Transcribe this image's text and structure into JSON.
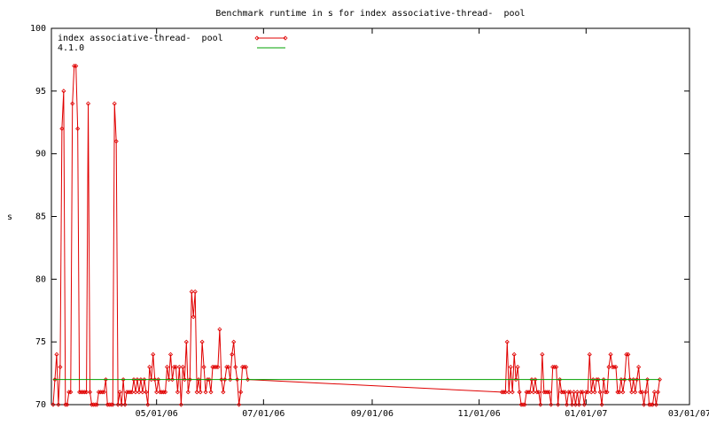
{
  "chart_data": {
    "type": "line",
    "title": "Benchmark runtime in s for index associative-thread-  pool",
    "y_label": "s",
    "xlim": [
      "2006-03-02",
      "2007-03-01"
    ],
    "xticks": [
      {
        "value": "2006-05-01",
        "label": "05/01/06"
      },
      {
        "value": "2006-07-01",
        "label": "07/01/06"
      },
      {
        "value": "2006-09-01",
        "label": "09/01/06"
      },
      {
        "value": "2006-11-01",
        "label": "11/01/06"
      },
      {
        "value": "2007-01-01",
        "label": "01/01/07"
      },
      {
        "value": "2007-03-01",
        "label": "03/01/07"
      }
    ],
    "ylim": [
      70,
      100
    ],
    "yticks": [
      70,
      75,
      80,
      85,
      90,
      95,
      100
    ],
    "legend": "top-left",
    "series": [
      {
        "name": "index associative-thread-  pool",
        "color": "#e00000",
        "markers": true,
        "x": [
          "2006-03-03",
          "2006-03-04",
          "2006-03-05",
          "2006-03-06",
          "2006-03-07",
          "2006-03-08",
          "2006-03-09",
          "2006-03-10",
          "2006-03-11",
          "2006-03-12",
          "2006-03-13",
          "2006-03-14",
          "2006-03-15",
          "2006-03-16",
          "2006-03-17",
          "2006-03-18",
          "2006-03-19",
          "2006-03-20",
          "2006-03-21",
          "2006-03-22",
          "2006-03-23",
          "2006-03-24",
          "2006-03-25",
          "2006-03-26",
          "2006-03-27",
          "2006-03-28",
          "2006-03-29",
          "2006-03-30",
          "2006-03-31",
          "2006-04-01",
          "2006-04-02",
          "2006-04-03",
          "2006-04-04",
          "2006-04-05",
          "2006-04-06",
          "2006-04-07",
          "2006-04-08",
          "2006-04-09",
          "2006-04-10",
          "2006-04-11",
          "2006-04-12",
          "2006-04-13",
          "2006-04-14",
          "2006-04-15",
          "2006-04-16",
          "2006-04-17",
          "2006-04-18",
          "2006-04-19",
          "2006-04-20",
          "2006-04-21",
          "2006-04-22",
          "2006-04-23",
          "2006-04-24",
          "2006-04-25",
          "2006-04-26",
          "2006-04-27",
          "2006-04-28",
          "2006-04-29",
          "2006-04-30",
          "2006-05-01",
          "2006-05-02",
          "2006-05-03",
          "2006-05-04",
          "2006-05-05",
          "2006-05-06",
          "2006-05-07",
          "2006-05-08",
          "2006-05-09",
          "2006-05-10",
          "2006-05-11",
          "2006-05-12",
          "2006-05-13",
          "2006-05-14",
          "2006-05-15",
          "2006-05-16",
          "2006-05-17",
          "2006-05-18",
          "2006-05-19",
          "2006-05-20",
          "2006-05-21",
          "2006-05-22",
          "2006-05-23",
          "2006-05-24",
          "2006-05-25",
          "2006-05-26",
          "2006-05-27",
          "2006-05-28",
          "2006-05-29",
          "2006-05-30",
          "2006-05-31",
          "2006-06-01",
          "2006-06-02",
          "2006-06-03",
          "2006-06-04",
          "2006-06-05",
          "2006-06-06",
          "2006-06-07",
          "2006-06-08",
          "2006-06-09",
          "2006-06-10",
          "2006-06-11",
          "2006-06-12",
          "2006-06-13",
          "2006-06-14",
          "2006-06-15",
          "2006-06-16",
          "2006-06-17",
          "2006-06-18",
          "2006-06-19",
          "2006-06-20",
          "2006-06-21",
          "2006-06-22",
          "2006-11-14",
          "2006-11-15",
          "2006-11-16",
          "2006-11-17",
          "2006-11-18",
          "2006-11-19",
          "2006-11-20",
          "2006-11-21",
          "2006-11-22",
          "2006-11-23",
          "2006-11-24",
          "2006-11-25",
          "2006-11-26",
          "2006-11-27",
          "2006-11-28",
          "2006-11-29",
          "2006-11-30",
          "2006-12-01",
          "2006-12-02",
          "2006-12-03",
          "2006-12-04",
          "2006-12-05",
          "2006-12-06",
          "2006-12-07",
          "2006-12-08",
          "2006-12-09",
          "2006-12-10",
          "2006-12-11",
          "2006-12-12",
          "2006-12-13",
          "2006-12-14",
          "2006-12-15",
          "2006-12-16",
          "2006-12-17",
          "2006-12-18",
          "2006-12-19",
          "2006-12-20",
          "2006-12-21",
          "2006-12-22",
          "2006-12-23",
          "2006-12-24",
          "2006-12-25",
          "2006-12-26",
          "2006-12-27",
          "2006-12-28",
          "2006-12-29",
          "2006-12-30",
          "2006-12-31",
          "2007-01-01",
          "2007-01-02",
          "2007-01-03",
          "2007-01-04",
          "2007-01-05",
          "2007-01-06",
          "2007-01-07",
          "2007-01-08",
          "2007-01-09",
          "2007-01-10",
          "2007-01-11",
          "2007-01-12",
          "2007-01-13",
          "2007-01-14",
          "2007-01-15",
          "2007-01-16",
          "2007-01-17",
          "2007-01-18",
          "2007-01-19",
          "2007-01-20",
          "2007-01-21",
          "2007-01-22",
          "2007-01-23",
          "2007-01-24",
          "2007-01-25",
          "2007-01-26",
          "2007-01-27",
          "2007-01-28",
          "2007-01-29",
          "2007-01-30",
          "2007-01-31",
          "2007-02-01",
          "2007-02-02",
          "2007-02-03",
          "2007-02-04",
          "2007-02-05",
          "2007-02-06",
          "2007-02-07",
          "2007-02-08",
          "2007-02-09",
          "2007-02-10",
          "2007-02-11",
          "2007-02-12"
        ],
        "values": [
          70,
          72,
          74,
          70,
          73,
          92,
          95,
          70,
          70,
          71,
          71,
          94,
          97,
          97,
          92,
          71,
          71,
          71,
          71,
          71,
          94,
          71,
          70,
          70,
          70,
          70,
          71,
          71,
          71,
          71,
          72,
          70,
          70,
          70,
          70,
          94,
          91,
          70,
          71,
          70,
          72,
          70,
          71,
          71,
          71,
          71,
          72,
          71,
          72,
          71,
          72,
          71,
          72,
          71,
          70,
          73,
          72,
          74,
          72,
          71,
          72,
          71,
          71,
          71,
          71,
          73,
          72,
          74,
          72,
          73,
          73,
          71,
          73,
          70,
          73,
          72,
          75,
          71,
          72,
          79,
          77,
          79,
          71,
          72,
          71,
          75,
          73,
          71,
          72,
          72,
          71,
          73,
          73,
          73,
          73,
          76,
          72,
          71,
          72,
          73,
          73,
          72,
          74,
          75,
          73,
          72,
          70,
          71,
          73,
          73,
          73,
          72,
          71,
          71,
          71,
          75,
          71,
          73,
          71,
          74,
          72,
          73,
          71,
          70,
          70,
          70,
          71,
          71,
          71,
          72,
          71,
          72,
          71,
          71,
          70,
          74,
          71,
          71,
          71,
          71,
          70,
          73,
          73,
          73,
          70,
          72,
          71,
          71,
          71,
          70,
          71,
          71,
          70,
          71,
          70,
          71,
          70,
          71,
          71,
          70,
          71,
          71,
          74,
          71,
          72,
          71,
          72,
          72,
          71,
          70,
          72,
          71,
          71,
          73,
          74,
          73,
          73,
          73,
          71,
          71,
          72,
          71,
          72,
          74,
          74,
          72,
          71,
          72,
          71,
          72,
          73,
          71,
          71,
          70,
          71,
          72,
          70,
          70,
          70,
          71,
          70,
          71,
          72
        ]
      },
      {
        "name": "4.1.0",
        "color": "#00a000",
        "markers": false,
        "x": [
          "2006-03-03",
          "2007-02-12"
        ],
        "values": [
          72,
          72
        ]
      }
    ]
  }
}
